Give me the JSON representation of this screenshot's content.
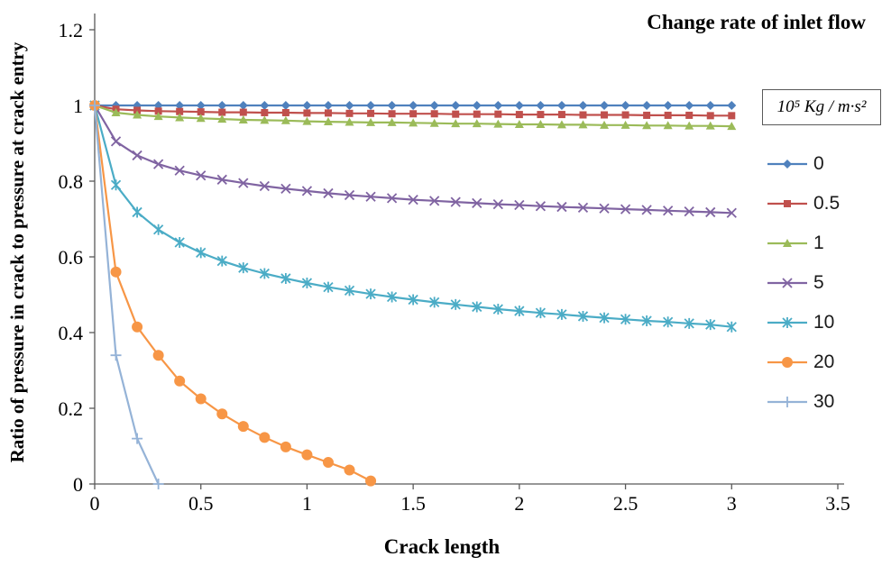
{
  "chart_data": {
    "type": "line",
    "title": "Change rate of inlet flow",
    "unit_label": "10⁵ Kg / m∙s²",
    "xlabel": "Crack length",
    "ylabel": "Ratio of pressure in crack to pressure at crack entry",
    "xlim": [
      0,
      3.5
    ],
    "ylim": [
      0,
      1.2
    ],
    "xticks": [
      0,
      0.5,
      1,
      1.5,
      2,
      2.5,
      3,
      3.5
    ],
    "yticks": [
      0,
      0.2,
      0.4,
      0.6,
      0.8,
      1,
      1.2
    ],
    "grid": false,
    "legend_position": "right",
    "axis_color": "#595959",
    "series": [
      {
        "name": "0",
        "color": "#4F81BD",
        "marker": "diamond",
        "x": [
          0,
          0.1,
          0.2,
          0.3,
          0.4,
          0.5,
          0.6,
          0.7,
          0.8,
          0.9,
          1,
          1.1,
          1.2,
          1.3,
          1.4,
          1.5,
          1.6,
          1.7,
          1.8,
          1.9,
          2,
          2.1,
          2.2,
          2.3,
          2.4,
          2.5,
          2.6,
          2.7,
          2.8,
          2.9,
          3
        ],
        "y": [
          1,
          1,
          1,
          1,
          1,
          1,
          1,
          1,
          1,
          1,
          1,
          1,
          1,
          1,
          1,
          1,
          1,
          1,
          1,
          1,
          1,
          1,
          1,
          1,
          1,
          1,
          1,
          1,
          1,
          1,
          1
        ]
      },
      {
        "name": "0.5",
        "color": "#C0504D",
        "marker": "square",
        "x": [
          0,
          0.1,
          0.2,
          0.3,
          0.4,
          0.5,
          0.6,
          0.7,
          0.8,
          0.9,
          1,
          1.1,
          1.2,
          1.3,
          1.4,
          1.5,
          1.6,
          1.7,
          1.8,
          1.9,
          2,
          2.1,
          2.2,
          2.3,
          2.4,
          2.5,
          2.6,
          2.7,
          2.8,
          2.9,
          3
        ],
        "y": [
          1,
          0.99,
          0.987,
          0.985,
          0.984,
          0.983,
          0.982,
          0.982,
          0.981,
          0.981,
          0.98,
          0.98,
          0.979,
          0.979,
          0.978,
          0.978,
          0.978,
          0.977,
          0.977,
          0.977,
          0.976,
          0.976,
          0.976,
          0.975,
          0.975,
          0.975,
          0.974,
          0.974,
          0.974,
          0.973,
          0.973
        ]
      },
      {
        "name": "1",
        "color": "#9BBB59",
        "marker": "triangle",
        "x": [
          0,
          0.1,
          0.2,
          0.3,
          0.4,
          0.5,
          0.6,
          0.7,
          0.8,
          0.9,
          1,
          1.1,
          1.2,
          1.3,
          1.4,
          1.5,
          1.6,
          1.7,
          1.8,
          1.9,
          2,
          2.1,
          2.2,
          2.3,
          2.4,
          2.5,
          2.6,
          2.7,
          2.8,
          2.9,
          3
        ],
        "y": [
          1,
          0.981,
          0.975,
          0.971,
          0.968,
          0.966,
          0.964,
          0.962,
          0.961,
          0.96,
          0.958,
          0.957,
          0.956,
          0.955,
          0.955,
          0.954,
          0.953,
          0.952,
          0.952,
          0.951,
          0.95,
          0.95,
          0.949,
          0.949,
          0.948,
          0.948,
          0.947,
          0.947,
          0.946,
          0.946,
          0.945
        ]
      },
      {
        "name": "5",
        "color": "#8064A2",
        "marker": "x",
        "x": [
          0,
          0.1,
          0.2,
          0.3,
          0.4,
          0.5,
          0.6,
          0.7,
          0.8,
          0.9,
          1,
          1.1,
          1.2,
          1.3,
          1.4,
          1.5,
          1.6,
          1.7,
          1.8,
          1.9,
          2,
          2.1,
          2.2,
          2.3,
          2.4,
          2.5,
          2.6,
          2.7,
          2.8,
          2.9,
          3
        ],
        "y": [
          1,
          0.905,
          0.868,
          0.845,
          0.828,
          0.815,
          0.804,
          0.795,
          0.787,
          0.78,
          0.774,
          0.768,
          0.763,
          0.759,
          0.755,
          0.751,
          0.748,
          0.745,
          0.742,
          0.739,
          0.737,
          0.734,
          0.732,
          0.73,
          0.728,
          0.726,
          0.724,
          0.722,
          0.72,
          0.718,
          0.716
        ]
      },
      {
        "name": "10",
        "color": "#4BACC6",
        "marker": "star",
        "x": [
          0,
          0.1,
          0.2,
          0.3,
          0.4,
          0.5,
          0.6,
          0.7,
          0.8,
          0.9,
          1,
          1.1,
          1.2,
          1.3,
          1.4,
          1.5,
          1.6,
          1.7,
          1.8,
          1.9,
          2,
          2.1,
          2.2,
          2.3,
          2.4,
          2.5,
          2.6,
          2.7,
          2.8,
          2.9,
          3
        ],
        "y": [
          1,
          0.79,
          0.718,
          0.672,
          0.638,
          0.611,
          0.589,
          0.571,
          0.556,
          0.543,
          0.531,
          0.52,
          0.511,
          0.502,
          0.494,
          0.487,
          0.48,
          0.474,
          0.468,
          0.462,
          0.457,
          0.452,
          0.448,
          0.443,
          0.439,
          0.435,
          0.431,
          0.428,
          0.424,
          0.421,
          0.415
        ]
      },
      {
        "name": "20",
        "color": "#F79646",
        "marker": "circle",
        "x": [
          0,
          0.1,
          0.2,
          0.3,
          0.4,
          0.5,
          0.6,
          0.7,
          0.8,
          0.9,
          1,
          1.1,
          1.2,
          1.3
        ],
        "y": [
          1,
          0.56,
          0.415,
          0.34,
          0.272,
          0.225,
          0.185,
          0.152,
          0.123,
          0.098,
          0.077,
          0.057,
          0.037,
          0.008
        ]
      },
      {
        "name": "30",
        "color": "#95B3D7",
        "marker": "plus",
        "x": [
          0,
          0.1,
          0.2,
          0.3
        ],
        "y": [
          1,
          0.34,
          0.12,
          0
        ]
      }
    ]
  }
}
